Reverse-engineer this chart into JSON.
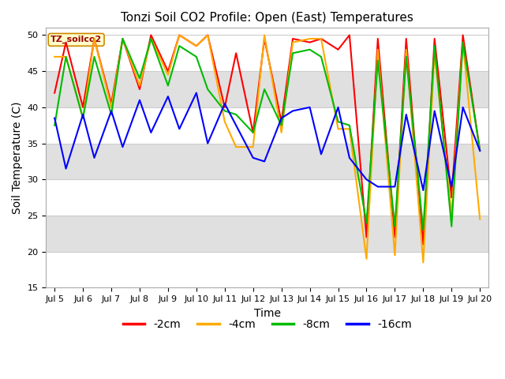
{
  "title": "Tonzi Soil CO2 Profile: Open (East) Temperatures",
  "xlabel": "Time",
  "ylabel": "Soil Temperature (C)",
  "ylim": [
    15,
    51
  ],
  "yticks": [
    15,
    20,
    25,
    30,
    35,
    40,
    45,
    50
  ],
  "watermark": "TZ_soilco2",
  "legend_labels": [
    "-2cm",
    "-4cm",
    "-8cm",
    "-16cm"
  ],
  "legend_colors": [
    "#ff0000",
    "#ffaa00",
    "#00bb00",
    "#0000ff"
  ],
  "line_width": 1.5,
  "fig_bg_color": "#ffffff",
  "plot_bg_color": "#ffffff",
  "band_light": "#ffffff",
  "band_dark": "#e0e0e0",
  "x_labels": [
    "Jul 5",
    "Jul 6",
    "Jul 7",
    "Jul 8",
    "Jul 9",
    "Jul 10",
    "Jul 11",
    "Jul 12",
    "Jul 13",
    "Jul 14",
    "Jul 15",
    "Jul 16",
    "Jul 17",
    "Jul 18",
    "Jul 19",
    "Jul 20"
  ],
  "x_values": [
    5,
    6,
    7,
    8,
    9,
    10,
    11,
    12,
    13,
    14,
    15,
    16,
    17,
    18,
    19,
    20
  ],
  "series": {
    "red_2cm": {
      "x": [
        5.0,
        5.4,
        6.0,
        6.4,
        7.0,
        7.4,
        8.0,
        8.4,
        9.0,
        9.4,
        10.0,
        10.4,
        11.0,
        11.4,
        12.0,
        12.4,
        13.0,
        13.4,
        14.0,
        14.4,
        15.0,
        15.4,
        16.0,
        16.4,
        17.0,
        17.4,
        18.0,
        18.4,
        19.0,
        19.4,
        20.0
      ],
      "y": [
        42.0,
        49.0,
        40.0,
        49.5,
        40.5,
        49.5,
        42.5,
        50.0,
        45.0,
        50.0,
        48.5,
        50.0,
        40.0,
        47.5,
        36.5,
        49.5,
        38.0,
        49.5,
        49.0,
        49.5,
        48.0,
        50.0,
        22.0,
        49.5,
        22.0,
        49.5,
        21.0,
        49.5,
        27.5,
        50.0,
        34.0
      ]
    },
    "orange_4cm": {
      "x": [
        5.0,
        5.4,
        6.0,
        6.4,
        7.0,
        7.4,
        8.0,
        8.4,
        9.0,
        9.4,
        10.0,
        10.4,
        11.0,
        11.4,
        12.0,
        12.4,
        13.0,
        13.4,
        14.0,
        14.4,
        15.0,
        15.4,
        16.0,
        16.4,
        17.0,
        17.4,
        18.0,
        18.4,
        19.0,
        19.4,
        20.0
      ],
      "y": [
        47.0,
        47.0,
        38.5,
        49.5,
        40.0,
        49.5,
        43.0,
        49.5,
        44.5,
        50.0,
        48.5,
        50.0,
        38.0,
        34.5,
        34.5,
        50.0,
        36.5,
        49.0,
        49.5,
        49.5,
        37.0,
        37.0,
        19.0,
        48.0,
        19.5,
        48.0,
        18.5,
        47.5,
        25.0,
        49.0,
        24.5
      ]
    },
    "green_8cm": {
      "x": [
        5.0,
        5.4,
        6.0,
        6.4,
        7.0,
        7.4,
        8.0,
        8.4,
        9.0,
        9.4,
        10.0,
        10.4,
        11.0,
        11.4,
        12.0,
        12.4,
        13.0,
        13.4,
        14.0,
        14.4,
        15.0,
        15.4,
        16.0,
        16.4,
        17.0,
        17.4,
        18.0,
        18.4,
        19.0,
        19.4,
        20.0
      ],
      "y": [
        37.5,
        47.0,
        38.5,
        47.0,
        39.0,
        49.5,
        44.0,
        49.5,
        43.0,
        48.5,
        47.0,
        42.5,
        39.5,
        39.0,
        36.5,
        42.5,
        37.5,
        47.5,
        48.0,
        47.0,
        38.0,
        37.5,
        24.0,
        46.5,
        23.5,
        47.0,
        23.0,
        48.5,
        23.5,
        49.0,
        34.0
      ]
    },
    "blue_16cm": {
      "x": [
        5.0,
        5.4,
        6.0,
        6.4,
        7.0,
        7.4,
        8.0,
        8.4,
        9.0,
        9.4,
        10.0,
        10.4,
        11.0,
        11.4,
        12.0,
        12.4,
        13.0,
        13.4,
        14.0,
        14.4,
        15.0,
        15.4,
        16.0,
        16.4,
        17.0,
        17.4,
        18.0,
        18.4,
        19.0,
        19.4,
        20.0
      ],
      "y": [
        38.5,
        31.5,
        39.0,
        33.0,
        39.5,
        34.5,
        41.0,
        36.5,
        41.5,
        37.0,
        42.0,
        35.0,
        40.5,
        37.5,
        33.0,
        32.5,
        38.5,
        39.5,
        40.0,
        33.5,
        40.0,
        33.0,
        30.0,
        29.0,
        29.0,
        39.0,
        28.5,
        39.5,
        29.0,
        40.0,
        34.0
      ]
    }
  }
}
